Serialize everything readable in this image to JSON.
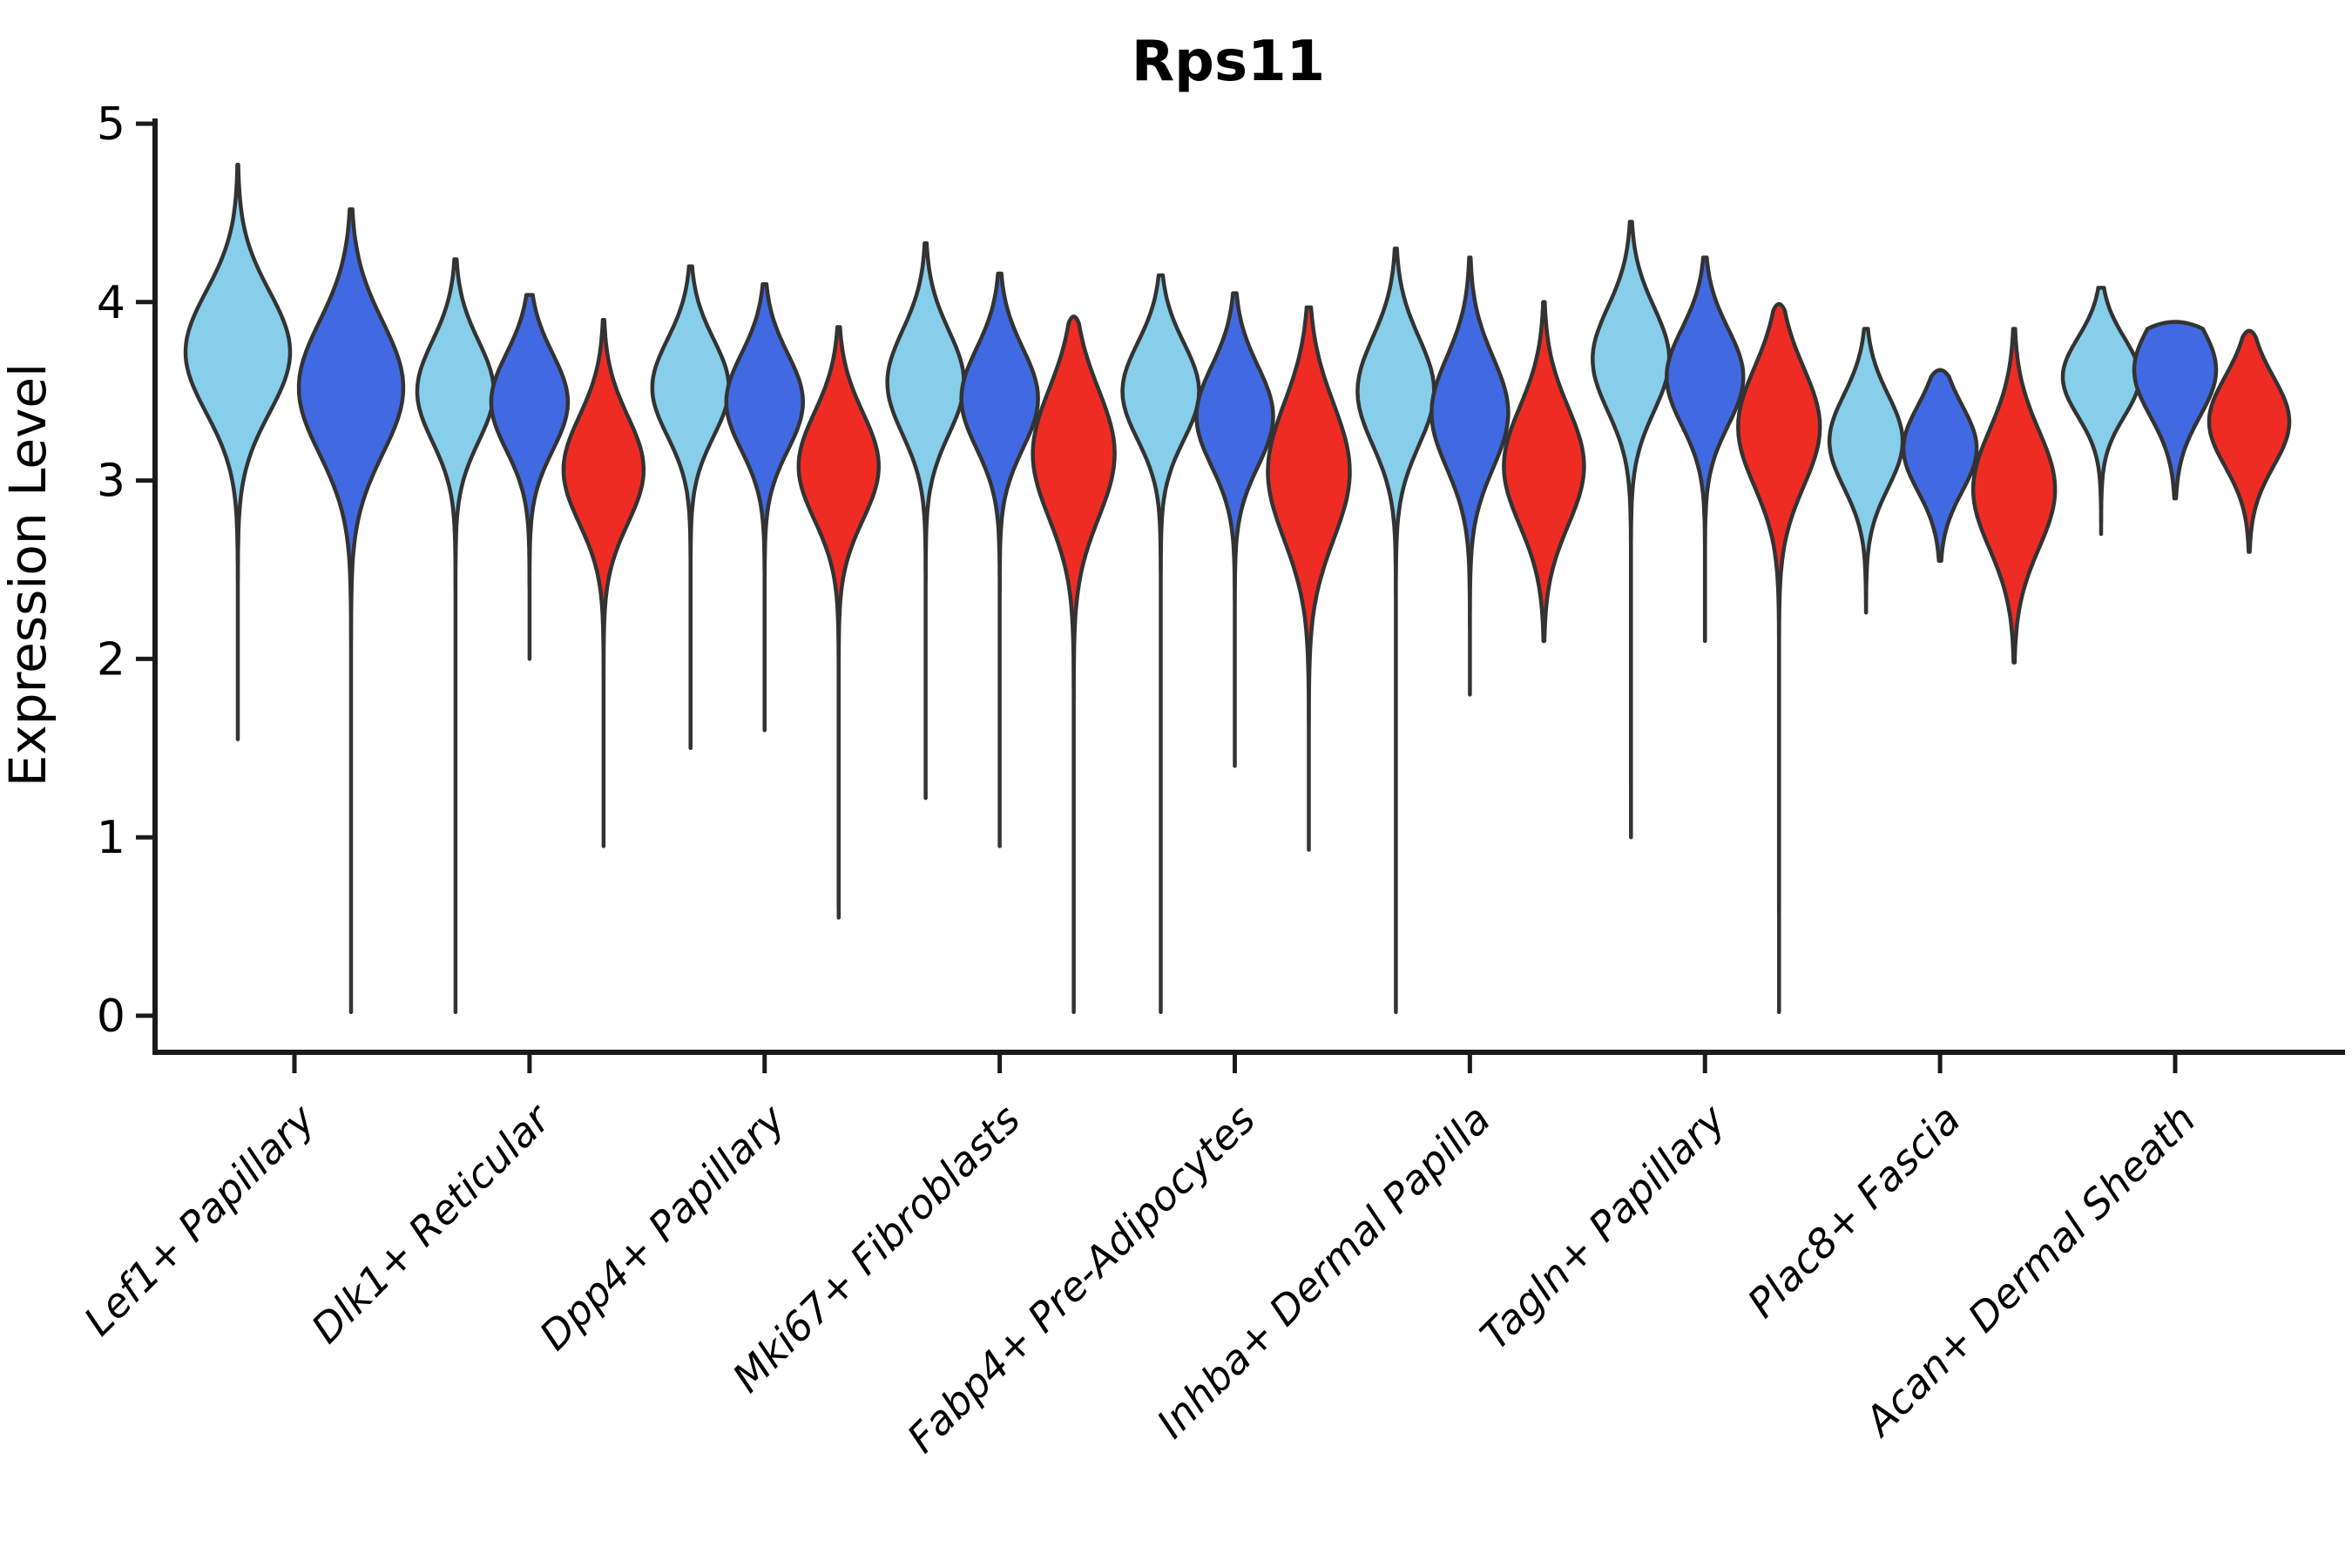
{
  "title": "Rps11",
  "ylabel": "Expression Level",
  "chart_data": {
    "type": "violin",
    "title": "Rps11",
    "xlabel": "",
    "ylabel": "Expression Level",
    "ylim": [
      0,
      5
    ],
    "yticks": [
      0,
      1,
      2,
      3,
      4,
      5
    ],
    "grid": false,
    "legend": null,
    "outline_color": "#333333",
    "categories": [
      "Lef1+ Papillary",
      "Dlk1+ Reticular",
      "Dpp4+ Papillary",
      "Mki67+ Fibroblasts",
      "Fabp4+ Pre-Adipocytes",
      "Inhba+ Dermal Papilla",
      "Tagln+ Papillary",
      "Plac8+ Fascia",
      "Acan+ Dermal Sheath"
    ],
    "series": [
      {
        "name": "light-blue",
        "color": "#87CEEB",
        "violins": [
          {
            "category": "Lef1+ Papillary",
            "max": 4.77,
            "min": 1.55,
            "mode": 3.72,
            "sigma": 0.34,
            "halfwidth": 60
          },
          {
            "category": "Dlk1+ Reticular",
            "max": 4.24,
            "min": 0.02,
            "mode": 3.5,
            "sigma": 0.28,
            "halfwidth": 44
          },
          {
            "category": "Dpp4+ Papillary",
            "max": 4.2,
            "min": 1.5,
            "mode": 3.52,
            "sigma": 0.27,
            "halfwidth": 44
          },
          {
            "category": "Mki67+ Fibroblasts",
            "max": 4.33,
            "min": 1.22,
            "mode": 3.55,
            "sigma": 0.29,
            "halfwidth": 44
          },
          {
            "category": "Fabp4+ Pre-Adipocytes",
            "max": 4.15,
            "min": 0.02,
            "mode": 3.5,
            "sigma": 0.27,
            "halfwidth": 44
          },
          {
            "category": "Inhba+ Dermal Papilla",
            "max": 4.3,
            "min": 0.02,
            "mode": 3.5,
            "sigma": 0.3,
            "halfwidth": 44
          },
          {
            "category": "Tagln+ Papillary",
            "max": 4.45,
            "min": 1.0,
            "mode": 3.68,
            "sigma": 0.29,
            "halfwidth": 44
          },
          {
            "category": "Plac8+ Fascia",
            "max": 3.85,
            "min": 2.26,
            "mode": 3.22,
            "sigma": 0.26,
            "halfwidth": 42
          },
          {
            "category": "Acan+ Dermal Sheath",
            "max": 4.08,
            "min": 2.7,
            "mode": 3.58,
            "sigma": 0.22,
            "halfwidth": 44
          }
        ]
      },
      {
        "name": "dark-blue",
        "color": "#4169E1",
        "violins": [
          {
            "category": "Lef1+ Papillary",
            "max": 4.52,
            "min": 0.02,
            "mode": 3.52,
            "sigma": 0.37,
            "halfwidth": 60
          },
          {
            "category": "Dlk1+ Reticular",
            "max": 4.04,
            "min": 2.0,
            "mode": 3.44,
            "sigma": 0.27,
            "halfwidth": 44
          },
          {
            "category": "Dpp4+ Papillary",
            "max": 4.1,
            "min": 1.6,
            "mode": 3.44,
            "sigma": 0.27,
            "halfwidth": 44
          },
          {
            "category": "Mki67+ Fibroblasts",
            "max": 4.16,
            "min": 0.95,
            "mode": 3.46,
            "sigma": 0.28,
            "halfwidth": 44
          },
          {
            "category": "Fabp4+ Pre-Adipocytes",
            "max": 4.05,
            "min": 1.4,
            "mode": 3.36,
            "sigma": 0.28,
            "halfwidth": 44
          },
          {
            "category": "Inhba+ Dermal Papilla",
            "max": 4.25,
            "min": 1.8,
            "mode": 3.38,
            "sigma": 0.31,
            "halfwidth": 44
          },
          {
            "category": "Tagln+ Papillary",
            "max": 4.25,
            "min": 2.1,
            "mode": 3.58,
            "sigma": 0.27,
            "halfwidth": 44
          },
          {
            "category": "Plac8+ Fascia",
            "max": 3.58,
            "min": 2.55,
            "mode": 3.18,
            "sigma": 0.24,
            "halfwidth": 42
          },
          {
            "category": "Acan+ Dermal Sheath",
            "max": 3.85,
            "min": 2.9,
            "mode": 3.62,
            "sigma": 0.26,
            "halfwidth": 47
          }
        ]
      },
      {
        "name": "red",
        "color": "#EE2C24",
        "violins": [
          null,
          {
            "category": "Dlk1+ Reticular",
            "max": 3.9,
            "min": 0.95,
            "mode": 3.06,
            "sigma": 0.3,
            "halfwidth": 46
          },
          {
            "category": "Dpp4+ Papillary",
            "max": 3.86,
            "min": 0.55,
            "mode": 3.08,
            "sigma": 0.3,
            "halfwidth": 46
          },
          {
            "category": "Mki67+ Fibroblasts",
            "max": 3.88,
            "min": 0.02,
            "mode": 3.15,
            "sigma": 0.36,
            "halfwidth": 47
          },
          {
            "category": "Fabp4+ Pre-Adipocytes",
            "max": 3.97,
            "min": 0.93,
            "mode": 3.05,
            "sigma": 0.38,
            "halfwidth": 47
          },
          {
            "category": "Inhba+ Dermal Papilla",
            "max": 4.0,
            "min": 2.1,
            "mode": 3.08,
            "sigma": 0.33,
            "halfwidth": 46
          },
          {
            "category": "Tagln+ Papillary",
            "max": 3.95,
            "min": 0.02,
            "mode": 3.3,
            "sigma": 0.33,
            "halfwidth": 47
          },
          {
            "category": "Plac8+ Fascia",
            "max": 3.85,
            "min": 1.98,
            "mode": 2.95,
            "sigma": 0.33,
            "halfwidth": 47
          },
          {
            "category": "Acan+ Dermal Sheath",
            "max": 3.8,
            "min": 2.6,
            "mode": 3.33,
            "sigma": 0.25,
            "halfwidth": 46
          }
        ]
      }
    ]
  }
}
